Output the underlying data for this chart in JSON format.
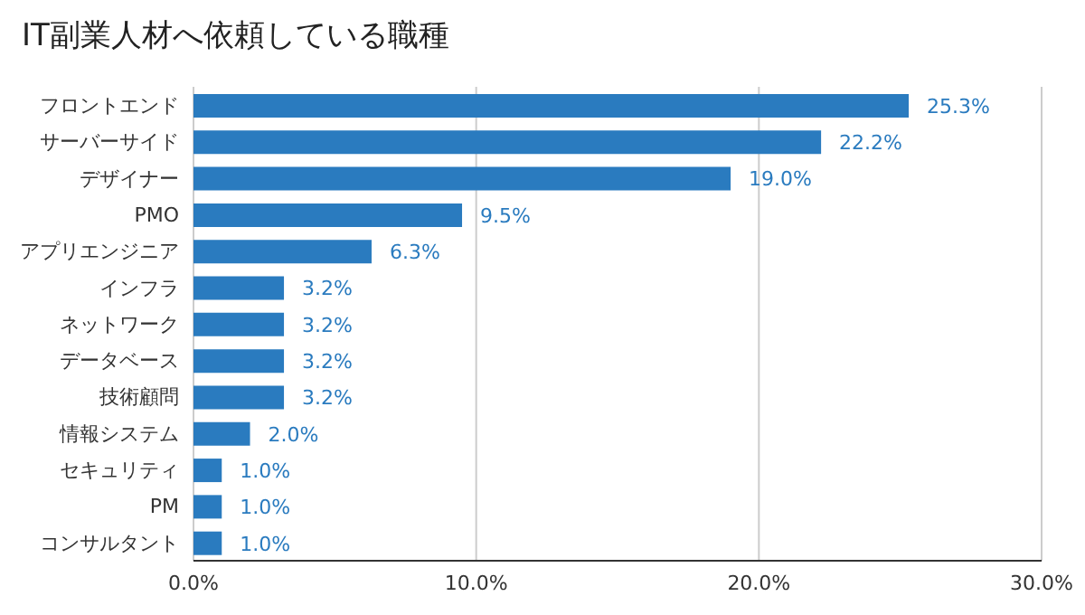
{
  "chart_data": {
    "type": "bar",
    "orientation": "horizontal",
    "title": "IT副業人材へ依頼している職種",
    "categories": [
      "フロントエンド",
      "サーバーサイド",
      "デザイナー",
      "PMO",
      "アプリエンジニア",
      "インフラ",
      "ネットワーク",
      "データベース",
      "技術顧問",
      "情報システム",
      "セキュリティ",
      "PM",
      "コンサルタント"
    ],
    "values": [
      25.3,
      22.2,
      19.0,
      9.5,
      6.3,
      3.2,
      3.2,
      3.2,
      3.2,
      2.0,
      1.0,
      1.0,
      1.0
    ],
    "value_labels": [
      "25.3%",
      "22.2%",
      "19.0%",
      "9.5%",
      "6.3%",
      "3.2%",
      "3.2%",
      "3.2%",
      "3.2%",
      "2.0%",
      "1.0%",
      "1.0%",
      "1.0%"
    ],
    "color": "#2a7bbf",
    "xlim": [
      0,
      30
    ],
    "xticks": [
      {
        "value": 0,
        "label": "0.0%"
      },
      {
        "value": 10,
        "label": "10.0%"
      },
      {
        "value": 20,
        "label": "20.0%"
      },
      {
        "value": 30,
        "label": "30.0%"
      }
    ],
    "grid": "x",
    "legend": false
  }
}
